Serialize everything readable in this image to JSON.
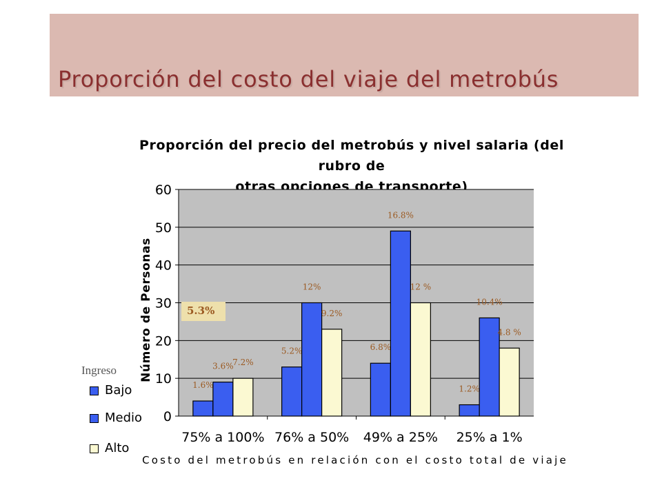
{
  "slide": {
    "title": "Proporción del costo del viaje del metrobús"
  },
  "note": "5.3%",
  "chart_data": {
    "type": "bar",
    "title": "Proporción del precio del metrobús y nivel salaria (del rubro de otras opciones de transporte)",
    "title_lines": [
      "Proporción del precio del metrobús y nivel salaria (del rubro de",
      "otras opciones de transporte)"
    ],
    "xlabel": "Costo del metrobús en relación con el costo total de viaje",
    "ylabel": "Número de Personas",
    "ylim": [
      0,
      60
    ],
    "yticks": [
      0,
      10,
      20,
      30,
      40,
      50,
      60
    ],
    "grid": true,
    "legend_title": "Ingreso",
    "legend_position": "bottom-left",
    "categories": [
      "75% a 100%",
      "76% a 50%",
      "49% a 25%",
      "25% a 1%"
    ],
    "series": [
      {
        "name": "Bajo",
        "color": "#3a5ef0",
        "values": [
          4,
          13,
          14,
          3
        ],
        "labels": [
          "1.6%",
          "5.2%",
          "6.8%",
          "1.2%"
        ]
      },
      {
        "name": "Medio",
        "color": "#3a5ef0",
        "values": [
          9,
          30,
          49,
          26
        ],
        "labels": [
          "3.6%",
          "12%",
          "16.8%",
          "10.4%"
        ]
      },
      {
        "name": "Alto",
        "color": "#fbf9d2",
        "values": [
          10,
          23,
          30,
          18
        ],
        "labels": [
          "7.2%",
          "9.2%",
          "12 %",
          "4.8 %"
        ]
      }
    ],
    "plot_background": "#c0c0c0",
    "label_color": "#9b5a22"
  }
}
